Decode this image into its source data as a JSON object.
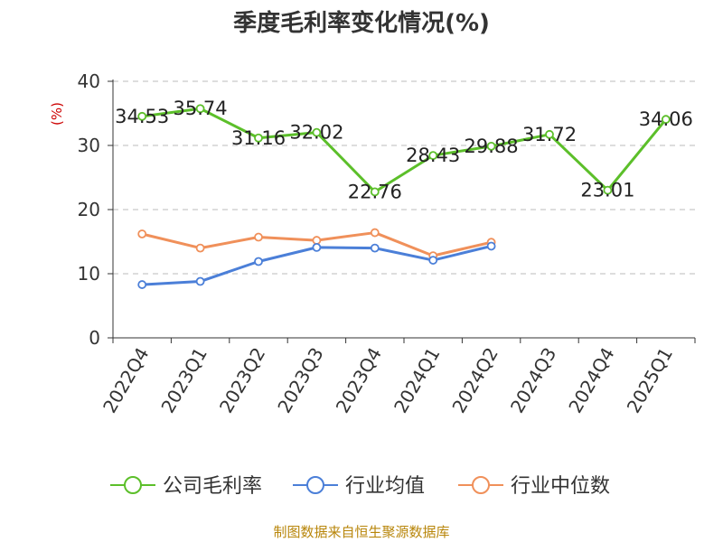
{
  "chart_data": {
    "type": "line",
    "title": "季度毛利率变化情况(%)",
    "ylabel": "(%)",
    "ylim": [
      0,
      40
    ],
    "yticks": [
      0,
      10,
      20,
      30,
      40
    ],
    "grid": true,
    "legend_position": "bottom",
    "categories": [
      "2022Q4",
      "2023Q1",
      "2023Q2",
      "2023Q3",
      "2023Q4",
      "2024Q1",
      "2024Q2",
      "2024Q3",
      "2024Q4",
      "2025Q1"
    ],
    "series": [
      {
        "name": "公司毛利率",
        "color": "#5cbf2a",
        "values": [
          34.53,
          35.74,
          31.16,
          32.02,
          22.76,
          28.43,
          29.88,
          31.72,
          23.01,
          34.06
        ],
        "labels": [
          "34.53",
          "35.74",
          "31.16",
          "32.02",
          "22.76",
          "28.43",
          "29.88",
          "31.72",
          "23.01",
          "34.06"
        ]
      },
      {
        "name": "行业均值",
        "color": "#4b7fd8",
        "values": [
          8.3,
          8.8,
          11.9,
          14.1,
          14.0,
          12.1,
          14.3,
          null,
          null,
          null
        ]
      },
      {
        "name": "行业中位数",
        "color": "#f0905a",
        "values": [
          16.2,
          14.0,
          15.7,
          15.2,
          16.4,
          12.8,
          14.9,
          null,
          null,
          null
        ]
      }
    ]
  },
  "source": "制图数据来自恒生聚源数据库"
}
